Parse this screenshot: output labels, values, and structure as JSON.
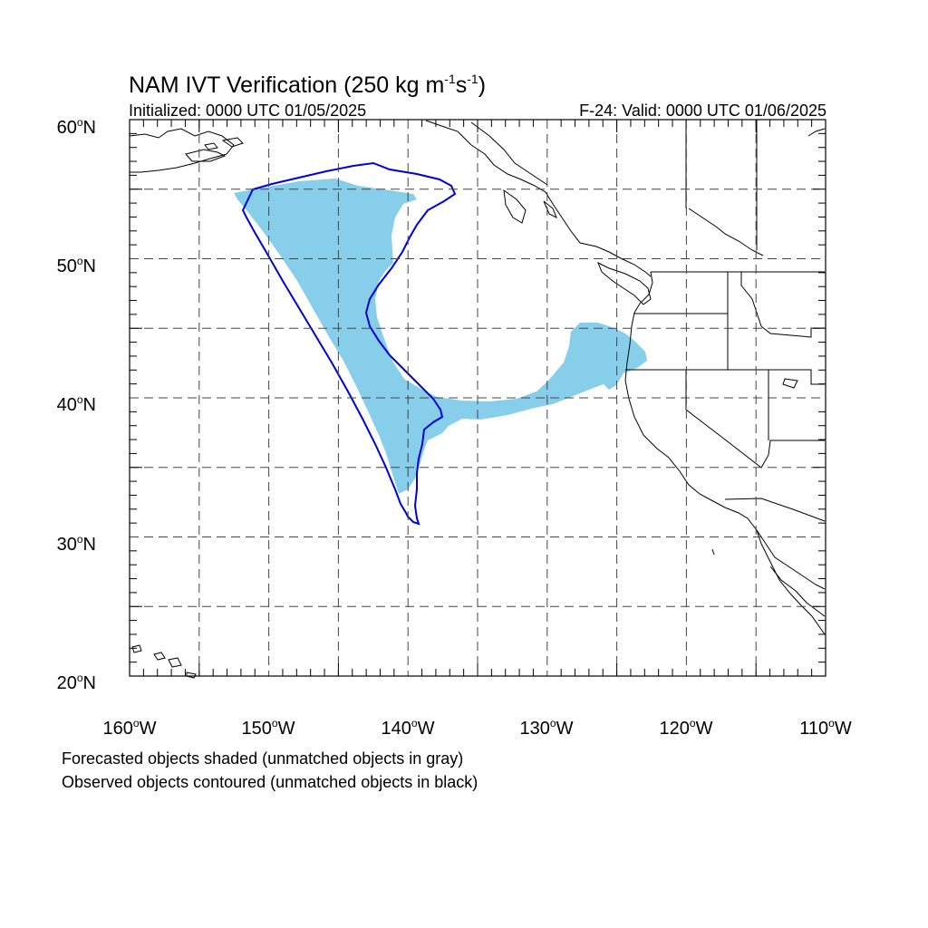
{
  "title": {
    "prefix": "NAM IVT Verification (250 kg m",
    "exp1": "-1",
    "mid": "s",
    "exp2": "-1",
    "suffix": ")"
  },
  "subtitle_left": "Initialized: 0000 UTC 01/05/2025",
  "subtitle_right": "F-24: Valid: 0000 UTC 01/06/2025",
  "lat_labels": [
    {
      "num": "60",
      "hemi": "N"
    },
    {
      "num": "50",
      "hemi": "N"
    },
    {
      "num": "40",
      "hemi": "N"
    },
    {
      "num": "30",
      "hemi": "N"
    },
    {
      "num": "20",
      "hemi": "N"
    }
  ],
  "lon_labels": [
    {
      "num": "160",
      "hemi": "W"
    },
    {
      "num": "150",
      "hemi": "W"
    },
    {
      "num": "140",
      "hemi": "W"
    },
    {
      "num": "130",
      "hemi": "W"
    },
    {
      "num": "120",
      "hemi": "W"
    },
    {
      "num": "110",
      "hemi": "W"
    }
  ],
  "footnotes": [
    "Forecasted objects shaded (unmatched objects in gray)",
    "Observed objects contoured (unmatched objects in black)"
  ],
  "colors": {
    "forecast_fill": "#87ceeb",
    "observed_contour": "#0000dd",
    "coastline": "#000000",
    "grid": "#444444"
  }
}
